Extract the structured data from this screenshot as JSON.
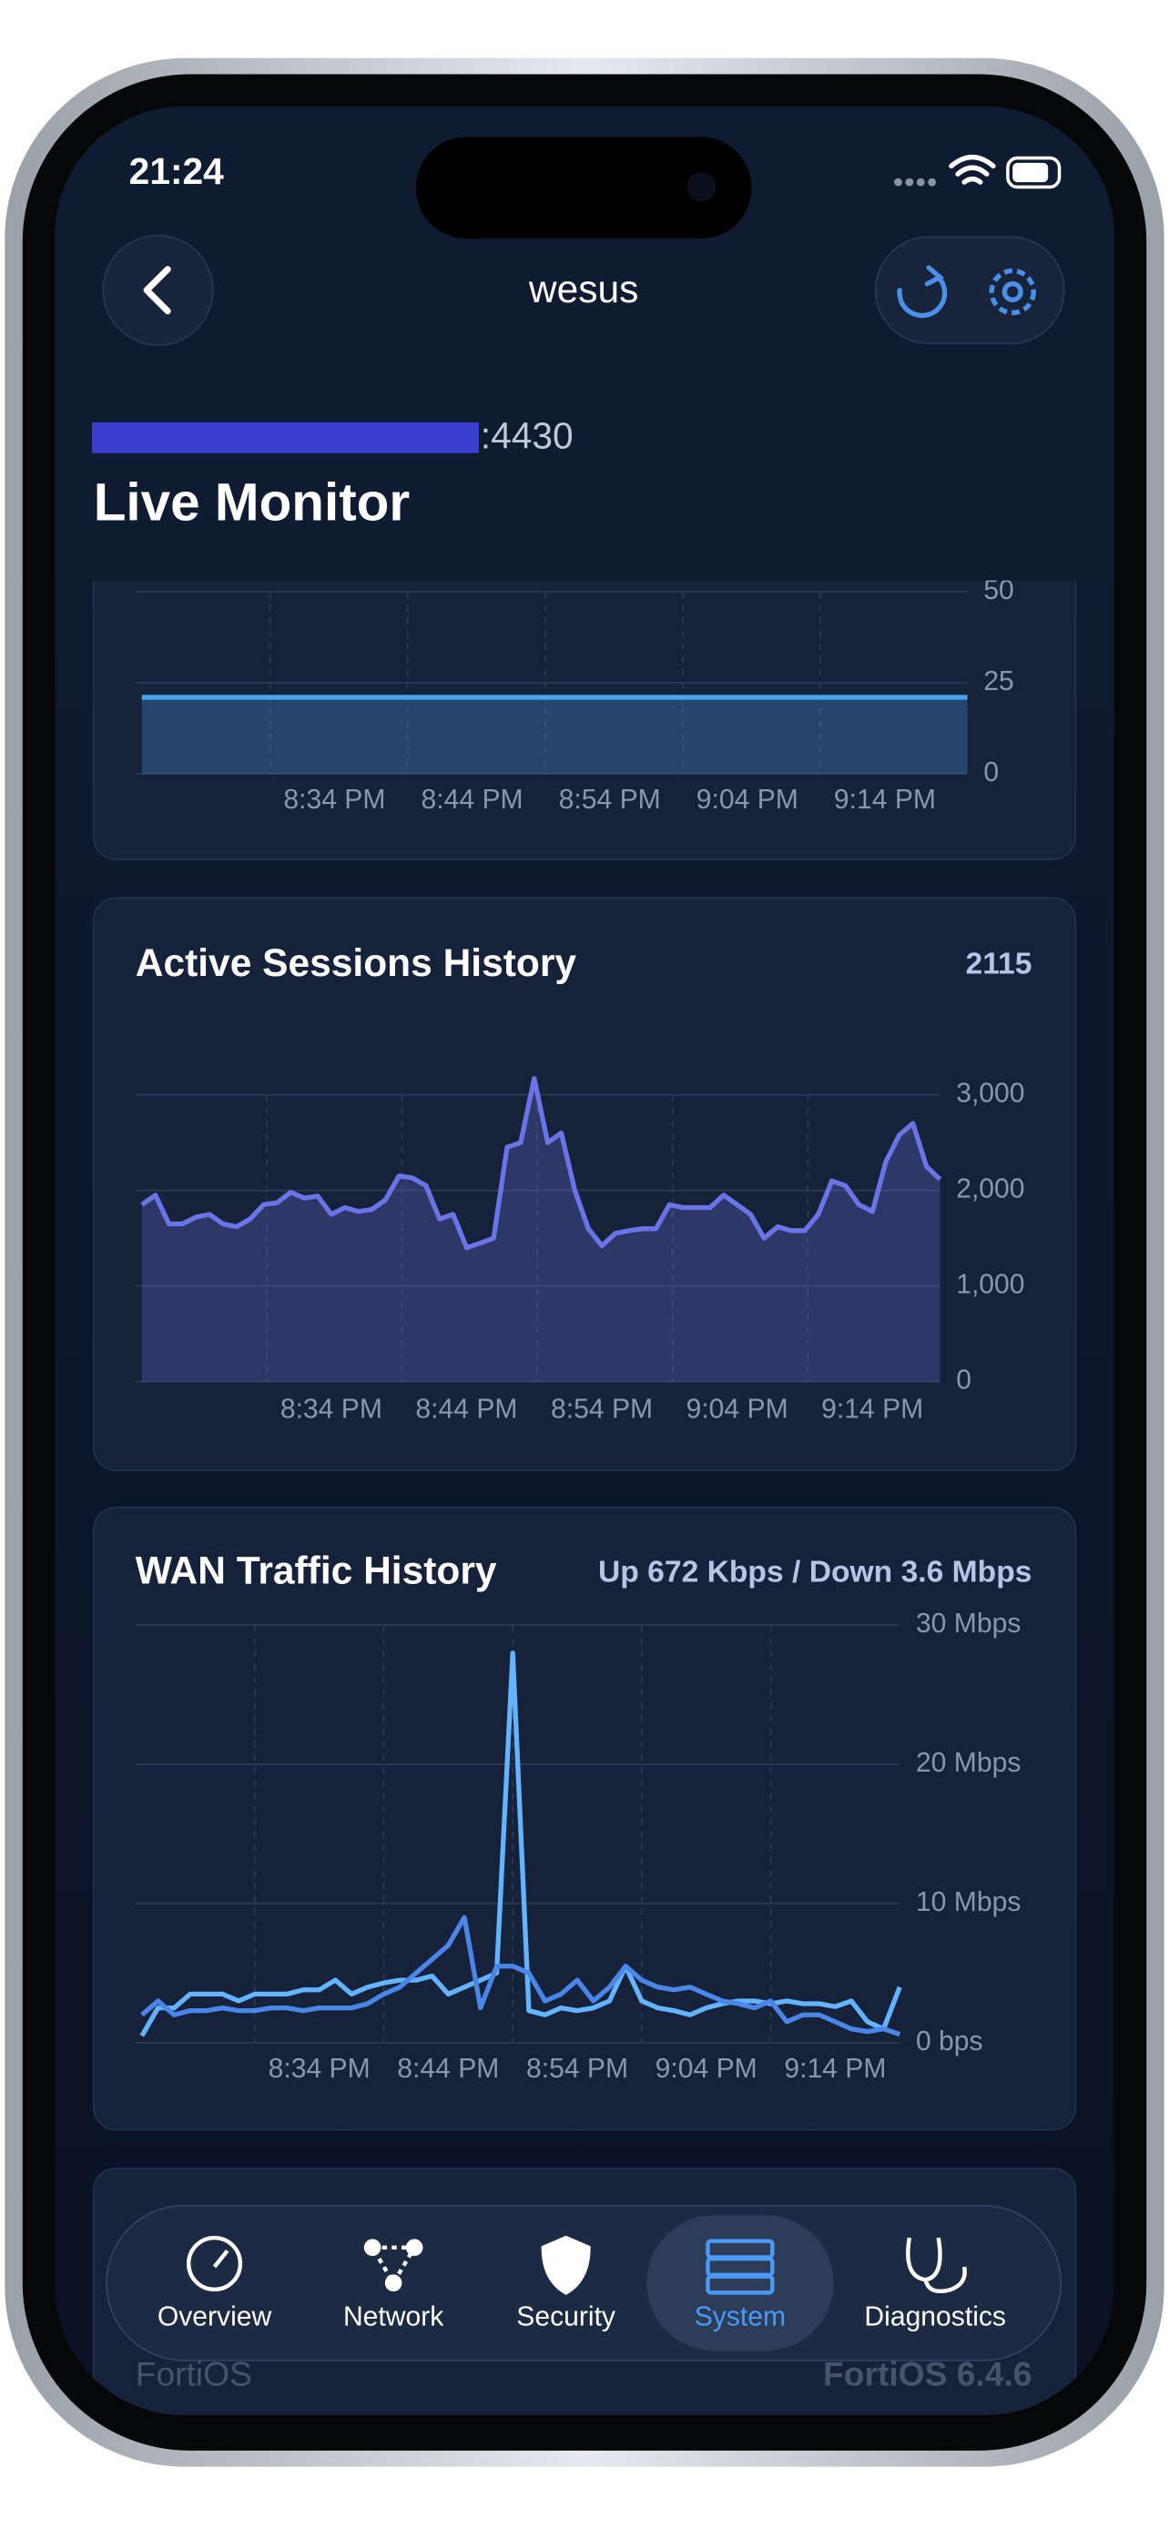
{
  "status_bar": {
    "time": "21:24"
  },
  "header": {
    "title": "wesus",
    "host": ":4430",
    "page_title": "Live Monitor"
  },
  "chart_data": [
    {
      "type": "area",
      "color": "#4aa3f0",
      "categories": [
        null,
        null,
        null,
        null,
        null,
        null,
        null,
        null,
        null,
        null,
        null,
        null,
        null,
        null,
        "8:34 PM",
        null,
        null,
        null,
        null,
        null,
        null,
        null,
        null,
        null,
        "8:44 PM",
        null,
        null,
        null,
        null,
        null,
        null,
        null,
        null,
        null,
        "8:54 PM",
        null,
        null,
        null,
        null,
        null,
        null,
        null,
        null,
        null,
        "9:04 PM",
        null,
        null,
        null,
        null,
        null,
        null,
        null,
        null,
        null,
        "9:14 PM",
        null,
        null,
        null,
        null,
        null,
        null
      ],
      "values": [
        21,
        21,
        21,
        21,
        21,
        21,
        21,
        21,
        21,
        21,
        21,
        21,
        21,
        21,
        21,
        21,
        21,
        21,
        21,
        21,
        21,
        21,
        21,
        21,
        21,
        21,
        21,
        21,
        21,
        21,
        21,
        21,
        21,
        21,
        21,
        21,
        21,
        21,
        21,
        21,
        21,
        21,
        21,
        21,
        21,
        21,
        21,
        21,
        21,
        21,
        21,
        21,
        21,
        21,
        21,
        21,
        21,
        21,
        21,
        21,
        21
      ],
      "ylim": [
        0,
        50
      ],
      "yticks": [
        0,
        25,
        50
      ],
      "grid": true
    },
    {
      "type": "area",
      "title": "Active Sessions History",
      "current_value": 2115,
      "color": "#6b74e6",
      "categories": [
        null,
        null,
        null,
        null,
        null,
        null,
        null,
        null,
        null,
        null,
        null,
        null,
        null,
        null,
        "8:34 PM",
        null,
        null,
        null,
        null,
        null,
        null,
        null,
        null,
        null,
        "8:44 PM",
        null,
        null,
        null,
        null,
        null,
        null,
        null,
        null,
        null,
        "8:54 PM",
        null,
        null,
        null,
        null,
        null,
        null,
        null,
        null,
        null,
        "9:04 PM",
        null,
        null,
        null,
        null,
        null,
        null,
        null,
        null,
        null,
        "9:14 PM",
        null,
        null,
        null,
        null,
        null
      ],
      "values": [
        1850,
        1950,
        1650,
        1650,
        1720,
        1750,
        1650,
        1620,
        1700,
        1850,
        1870,
        1980,
        1920,
        1940,
        1750,
        1820,
        1780,
        1800,
        1900,
        2150,
        2130,
        2050,
        1700,
        1750,
        1400,
        1450,
        1500,
        2450,
        2500,
        3170,
        2500,
        2600,
        2000,
        1600,
        1420,
        1550,
        1580,
        1600,
        1600,
        1850,
        1820,
        1820,
        1820,
        1950,
        1850,
        1750,
        1500,
        1620,
        1580,
        1580,
        1750,
        2100,
        2050,
        1850,
        1780,
        2300,
        2580,
        2700,
        2250,
        2115
      ],
      "ylim": [
        0,
        3000
      ],
      "yticks": [
        0,
        {
          "value": 1000,
          "label": "1,000"
        },
        {
          "value": 2000,
          "label": "2,000"
        },
        {
          "value": 3000,
          "label": "3,000"
        }
      ],
      "grid": true
    },
    {
      "type": "line",
      "title": "WAN Traffic History",
      "summary": "Up 672 Kbps / Down 3.6 Mbps",
      "categories": [
        null,
        null,
        null,
        null,
        null,
        null,
        null,
        null,
        null,
        null,
        null,
        "8:34 PM",
        null,
        null,
        null,
        null,
        null,
        null,
        null,
        "8:44 PM",
        null,
        null,
        null,
        null,
        null,
        null,
        null,
        "8:54 PM",
        null,
        null,
        null,
        null,
        null,
        null,
        null,
        "9:04 PM",
        null,
        null,
        null,
        null,
        null,
        null,
        null,
        "9:14 PM",
        null,
        null,
        null,
        null
      ],
      "series": [
        {
          "color": "#63b3ff",
          "values": [
            0.5,
            2.5,
            2.5,
            3.5,
            3.5,
            3.5,
            3.0,
            3.5,
            3.5,
            3.5,
            3.8,
            3.8,
            4.5,
            3.5,
            4.0,
            4.3,
            4.5,
            4.5,
            4.8,
            3.5,
            4.0,
            4.5,
            5.0,
            28,
            2.3,
            2.0,
            2.5,
            2.3,
            2.5,
            3.0,
            5.5,
            3.0,
            2.5,
            2.3,
            2.0,
            2.5,
            2.8,
            3.0,
            3.0,
            2.8,
            3.0,
            2.8,
            2.8,
            2.6,
            3.0,
            1.5,
            1.0,
            4.0
          ]
        },
        {
          "color": "#4a86e8",
          "values": [
            2.0,
            3.0,
            2.0,
            2.3,
            2.3,
            2.5,
            2.3,
            2.3,
            2.5,
            2.5,
            2.3,
            2.5,
            2.5,
            2.5,
            2.8,
            3.5,
            4.0,
            5.0,
            6.0,
            7.0,
            9.0,
            2.5,
            5.5,
            5.5,
            5.0,
            3.0,
            3.5,
            4.5,
            3.0,
            4.0,
            5.5,
            4.5,
            4.0,
            3.8,
            4.0,
            3.5,
            3.0,
            2.8,
            2.5,
            3.0,
            1.5,
            2.0,
            2.0,
            1.5,
            1.0,
            0.8,
            1.0,
            0.6
          ]
        }
      ],
      "ylim": [
        0,
        30
      ],
      "yticks": [
        {
          "value": 0,
          "label": "0 bps"
        },
        {
          "value": 10,
          "label": "10 Mbps"
        },
        {
          "value": 20,
          "label": "20 Mbps"
        },
        {
          "value": 30,
          "label": "30 Mbps"
        }
      ],
      "grid": true
    }
  ],
  "footer": {
    "left": "FortiOS",
    "right": "FortiOS 6.4.6"
  },
  "nav": {
    "items": [
      "Overview",
      "Network",
      "Security",
      "System",
      "Diagnostics"
    ],
    "active": 3
  }
}
